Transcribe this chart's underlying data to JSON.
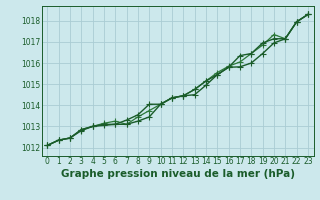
{
  "title": "Graphe pression niveau de la mer (hPa)",
  "xlabel_ticks": [
    0,
    1,
    2,
    3,
    4,
    5,
    6,
    7,
    8,
    9,
    10,
    11,
    12,
    13,
    14,
    15,
    16,
    17,
    18,
    19,
    20,
    21,
    22,
    23
  ],
  "ylim": [
    1011.6,
    1018.7
  ],
  "xlim": [
    -0.5,
    23.5
  ],
  "yticks": [
    1012,
    1013,
    1014,
    1015,
    1016,
    1017,
    1018
  ],
  "bg_color": "#cce8ec",
  "grid_color": "#aaccd4",
  "line_color_dark": "#1a5c2a",
  "line_color_mid": "#2d7a3a",
  "line1": [
    1012.1,
    1012.35,
    1012.45,
    1012.8,
    1013.0,
    1013.05,
    1013.1,
    1013.1,
    1013.25,
    1013.45,
    1014.05,
    1014.35,
    1014.45,
    1014.5,
    1014.95,
    1015.45,
    1015.8,
    1015.82,
    1016.0,
    1016.45,
    1016.95,
    1017.15,
    1017.95,
    1018.3
  ],
  "line2": [
    1012.1,
    1012.35,
    1012.45,
    1012.85,
    1013.0,
    1013.15,
    1013.25,
    1013.1,
    1013.45,
    1013.75,
    1014.05,
    1014.35,
    1014.45,
    1014.75,
    1015.15,
    1015.55,
    1015.85,
    1016.05,
    1016.45,
    1016.85,
    1017.35,
    1017.15,
    1017.95,
    1018.3
  ],
  "line3": [
    1012.1,
    1012.35,
    1012.45,
    1012.85,
    1013.0,
    1013.1,
    1013.1,
    1013.3,
    1013.55,
    1014.05,
    1014.05,
    1014.35,
    1014.45,
    1014.75,
    1015.15,
    1015.45,
    1015.8,
    1016.35,
    1016.45,
    1016.95,
    1017.15,
    1017.15,
    1017.95,
    1018.3
  ],
  "marker": "P",
  "markersize": 3,
  "linewidth": 1.0,
  "tick_fontsize": 5.5,
  "label_fontsize": 7.5,
  "label_fontweight": "bold"
}
